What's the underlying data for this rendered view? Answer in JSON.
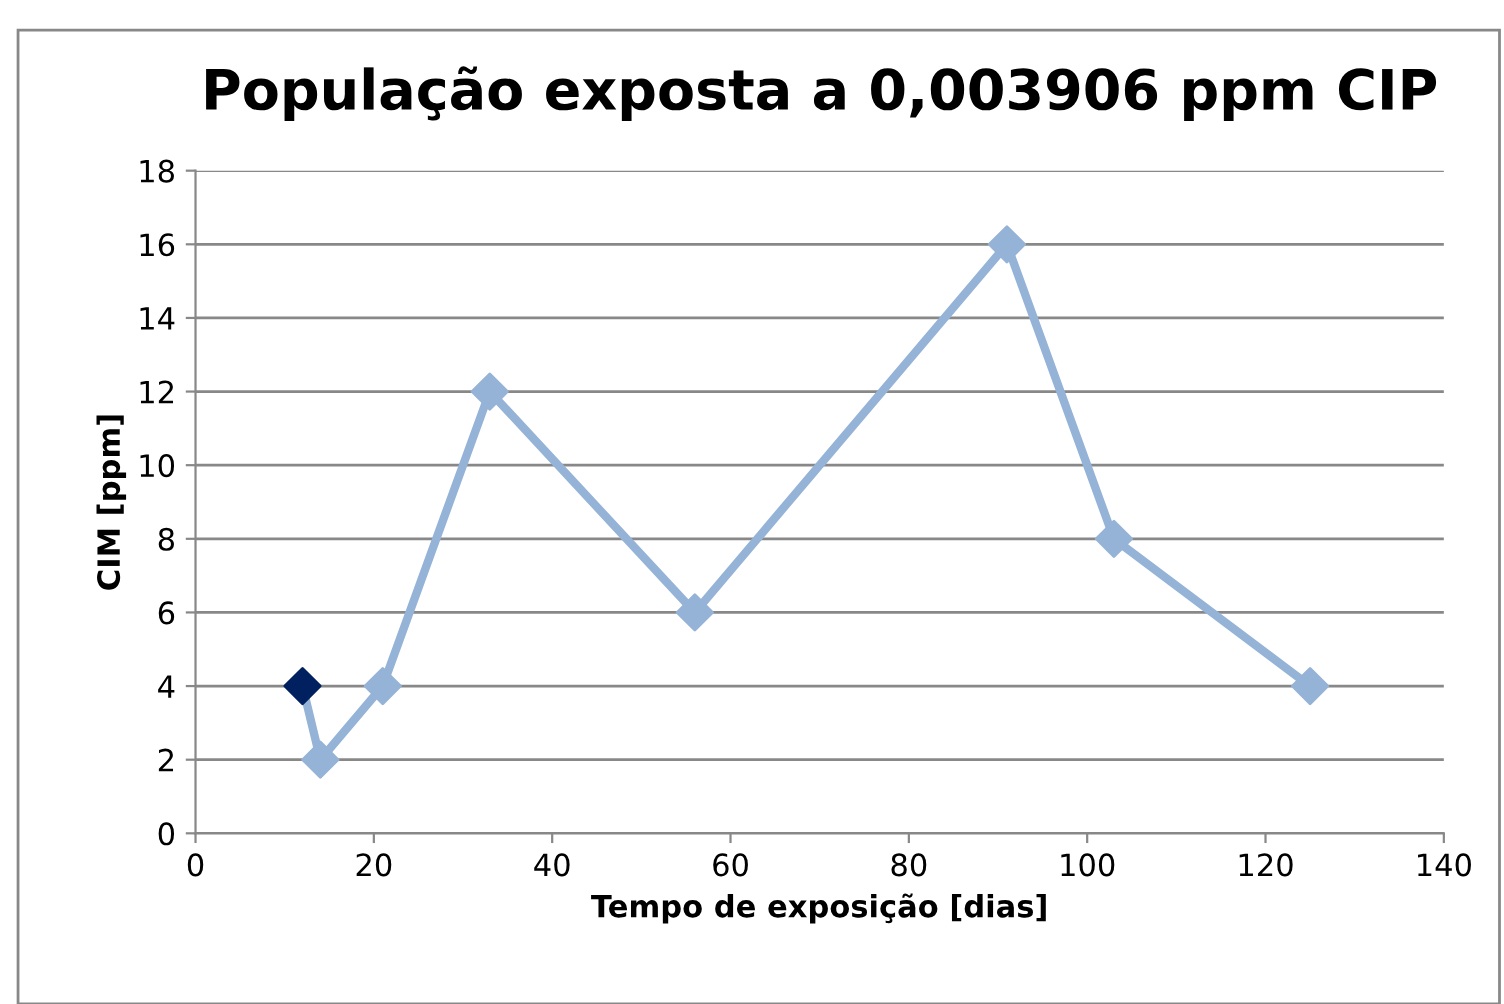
{
  "chart_data": {
    "type": "line",
    "title": "População exposta a 0,003906 ppm CIP",
    "xlabel": "Tempo de exposição [dias]",
    "ylabel": "CIM [ppm]",
    "series": [
      {
        "color": "#95b3d7",
        "colors": [
          "#002060",
          "#95b3d7",
          "#95b3d7",
          "#95b3d7",
          "#95b3d7",
          "#95b3d7",
          "#95b3d7",
          "#95b3d7"
        ],
        "x": [
          12,
          14,
          21,
          33,
          56,
          91,
          103,
          125
        ],
        "values": [
          4,
          2,
          4,
          12,
          6,
          16,
          8,
          4
        ]
      }
    ],
    "xlim": [
      0,
      140
    ],
    "xticks": [
      0,
      20,
      40,
      60,
      80,
      100,
      120,
      140
    ],
    "ylim": [
      0,
      18
    ],
    "yticks": [
      0,
      2,
      4,
      6,
      8,
      10,
      12,
      14,
      16,
      18
    ],
    "grid": "y",
    "marker": "diamond",
    "line_style": "solid"
  }
}
